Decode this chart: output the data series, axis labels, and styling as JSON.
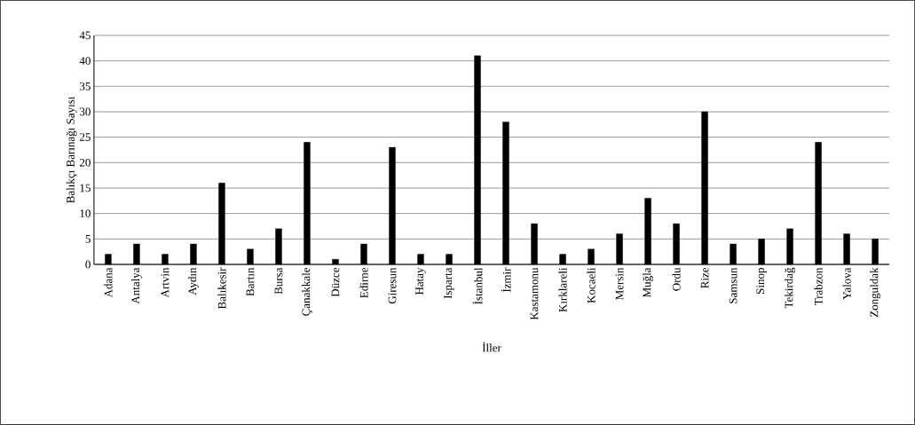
{
  "chart_data": {
    "type": "bar",
    "xlabel": "İller",
    "ylabel": "Balıkçı Barınağı Sayısı",
    "categories": [
      "Adana",
      "Antalya",
      "Artvin",
      "Aydın",
      "Balıkesir",
      "Bartın",
      "Bursa",
      "Çanakkale",
      "Düzce",
      "Edirne",
      "Giresun",
      "Hatay",
      "Isparta",
      "İstanbul",
      "İzmir",
      "Kastamonu",
      "Kırklareli",
      "Kocaeli",
      "Mersin",
      "Muğla",
      "Ordu",
      "Rize",
      "Samsun",
      "Sinop",
      "Tekirdağ",
      "Trabzon",
      "Yalova",
      "Zonguldak"
    ],
    "values": [
      2,
      4,
      2,
      4,
      16,
      3,
      7,
      24,
      1,
      4,
      23,
      2,
      2,
      41,
      28,
      8,
      2,
      3,
      6,
      13,
      8,
      30,
      4,
      5,
      7,
      24,
      6,
      5
    ],
    "color": "#000000",
    "ylim": [
      0,
      45
    ],
    "yticks": [
      0,
      5,
      10,
      15,
      20,
      25,
      30,
      35,
      40,
      45
    ],
    "grid": "y"
  }
}
